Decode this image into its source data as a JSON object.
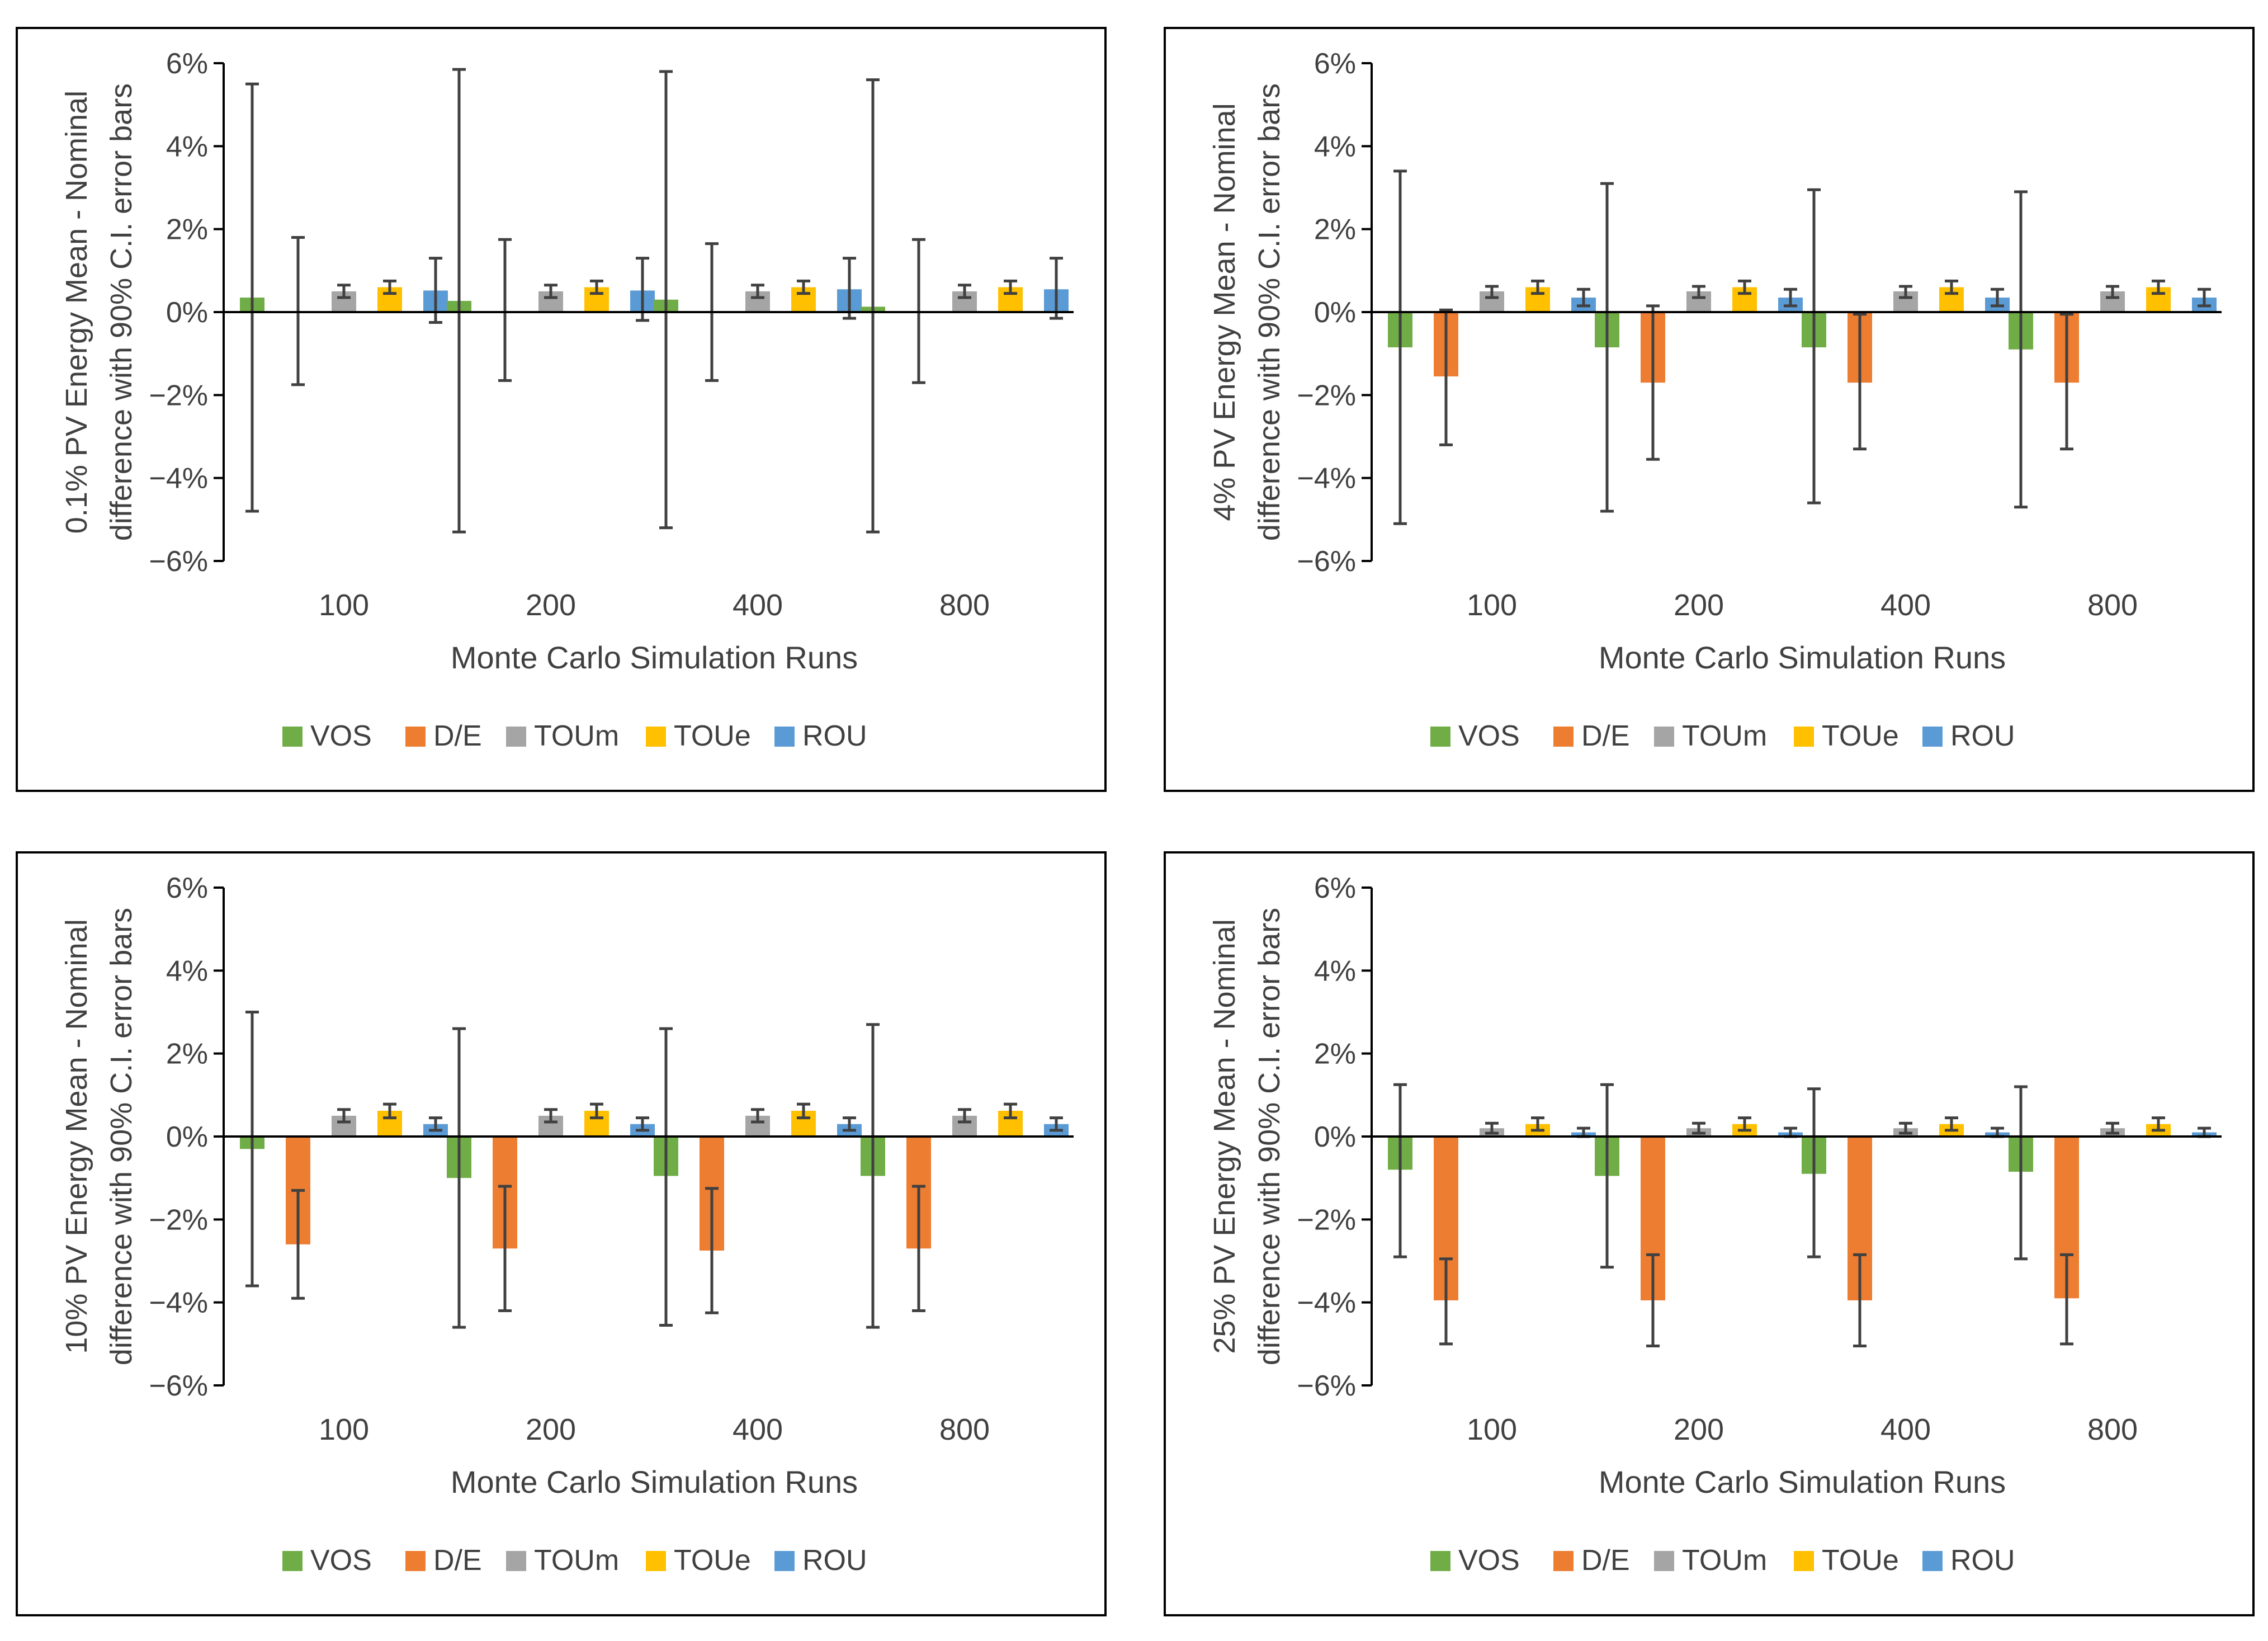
{
  "colors": {
    "VOS": "#70ad47",
    "D/E": "#ed7d31",
    "TOUm": "#a5a5a5",
    "TOUe": "#ffc000",
    "ROU": "#5b9bd5",
    "error_bar": "#404040",
    "frame": "#000000"
  },
  "chart_data": [
    {
      "type": "bar",
      "title": "",
      "ylabel_line1": "0.1% PV Energy  Mean - Nominal",
      "ylabel_line2": "difference with 90% C.I. error bars",
      "xlabel": "Monte Carlo Simulation Runs",
      "categories": [
        "100",
        "200",
        "400",
        "800"
      ],
      "ylim": [
        -6,
        6
      ],
      "yticks": [
        -6,
        -4,
        -2,
        0,
        2,
        4,
        6
      ],
      "ytick_labels": [
        "−6%",
        "−4%",
        "−2%",
        "0%",
        "2%",
        "4%",
        "6%"
      ],
      "legend": [
        "VOS",
        "D/E",
        "TOUm",
        "TOUe",
        "ROU"
      ],
      "series": [
        {
          "name": "VOS",
          "values": [
            0.35,
            0.27,
            0.3,
            0.13
          ],
          "err_low": [
            -4.8,
            -5.3,
            -5.2,
            -5.3
          ],
          "err_high": [
            5.5,
            5.85,
            5.8,
            5.6
          ]
        },
        {
          "name": "D/E",
          "values": [
            0.0,
            0.0,
            0.0,
            0.0
          ],
          "err_low": [
            -1.75,
            -1.65,
            -1.65,
            -1.7
          ],
          "err_high": [
            1.8,
            1.75,
            1.65,
            1.75
          ]
        },
        {
          "name": "TOUm",
          "values": [
            0.5,
            0.5,
            0.5,
            0.5
          ],
          "err_low": [
            0.35,
            0.35,
            0.35,
            0.35
          ],
          "err_high": [
            0.65,
            0.65,
            0.65,
            0.65
          ]
        },
        {
          "name": "TOUe",
          "values": [
            0.6,
            0.6,
            0.6,
            0.6
          ],
          "err_low": [
            0.45,
            0.45,
            0.45,
            0.45
          ],
          "err_high": [
            0.75,
            0.75,
            0.75,
            0.75
          ]
        },
        {
          "name": "ROU",
          "values": [
            0.52,
            0.52,
            0.55,
            0.55
          ],
          "err_low": [
            -0.25,
            -0.2,
            -0.15,
            -0.15
          ],
          "err_high": [
            1.3,
            1.3,
            1.3,
            1.3
          ]
        }
      ]
    },
    {
      "type": "bar",
      "title": "",
      "ylabel_line1": "4% PV Energy  Mean - Nominal",
      "ylabel_line2": "difference with 90% C.I. error bars",
      "xlabel": "Monte Carlo Simulation Runs",
      "categories": [
        "100",
        "200",
        "400",
        "800"
      ],
      "ylim": [
        -6,
        6
      ],
      "yticks": [
        -6,
        -4,
        -2,
        0,
        2,
        4,
        6
      ],
      "ytick_labels": [
        "−6%",
        "−4%",
        "−2%",
        "0%",
        "2%",
        "4%",
        "6%"
      ],
      "legend": [
        "VOS",
        "D/E",
        "TOUm",
        "TOUe",
        "ROU"
      ],
      "series": [
        {
          "name": "VOS",
          "values": [
            -0.85,
            -0.85,
            -0.85,
            -0.9
          ],
          "err_low": [
            -5.1,
            -4.8,
            -4.6,
            -4.7
          ],
          "err_high": [
            3.4,
            3.1,
            2.95,
            2.9
          ]
        },
        {
          "name": "D/E",
          "values": [
            -1.55,
            -1.7,
            -1.7,
            -1.7
          ],
          "err_low": [
            -3.2,
            -3.55,
            -3.3,
            -3.3
          ],
          "err_high": [
            0.05,
            0.15,
            -0.05,
            -0.05
          ]
        },
        {
          "name": "TOUm",
          "values": [
            0.5,
            0.5,
            0.5,
            0.5
          ],
          "err_low": [
            0.35,
            0.35,
            0.35,
            0.35
          ],
          "err_high": [
            0.62,
            0.62,
            0.62,
            0.62
          ]
        },
        {
          "name": "TOUe",
          "values": [
            0.6,
            0.6,
            0.6,
            0.6
          ],
          "err_low": [
            0.45,
            0.45,
            0.45,
            0.45
          ],
          "err_high": [
            0.75,
            0.75,
            0.75,
            0.75
          ]
        },
        {
          "name": "ROU",
          "values": [
            0.35,
            0.35,
            0.35,
            0.35
          ],
          "err_low": [
            0.15,
            0.15,
            0.15,
            0.15
          ],
          "err_high": [
            0.55,
            0.55,
            0.55,
            0.55
          ]
        }
      ]
    },
    {
      "type": "bar",
      "title": "",
      "ylabel_line1": "10% PV Energy  Mean - Nominal",
      "ylabel_line2": "difference with 90% C.I. error bars",
      "xlabel": "Monte Carlo Simulation Runs",
      "categories": [
        "100",
        "200",
        "400",
        "800"
      ],
      "ylim": [
        -6,
        6
      ],
      "yticks": [
        -6,
        -4,
        -2,
        0,
        2,
        4,
        6
      ],
      "ytick_labels": [
        "−6%",
        "−4%",
        "−2%",
        "0%",
        "2%",
        "4%",
        "6%"
      ],
      "legend": [
        "VOS",
        "D/E",
        "TOUm",
        "TOUe",
        "ROU"
      ],
      "series": [
        {
          "name": "VOS",
          "values": [
            -0.3,
            -1.0,
            -0.95,
            -0.95
          ],
          "err_low": [
            -3.6,
            -4.6,
            -4.55,
            -4.6
          ],
          "err_high": [
            3.0,
            2.6,
            2.6,
            2.7
          ]
        },
        {
          "name": "D/E",
          "values": [
            -2.6,
            -2.7,
            -2.75,
            -2.7
          ],
          "err_low": [
            -3.9,
            -4.2,
            -4.25,
            -4.2
          ],
          "err_high": [
            -1.3,
            -1.2,
            -1.25,
            -1.2
          ]
        },
        {
          "name": "TOUm",
          "values": [
            0.5,
            0.5,
            0.5,
            0.5
          ],
          "err_low": [
            0.35,
            0.35,
            0.35,
            0.35
          ],
          "err_high": [
            0.65,
            0.65,
            0.65,
            0.65
          ]
        },
        {
          "name": "TOUe",
          "values": [
            0.62,
            0.62,
            0.62,
            0.62
          ],
          "err_low": [
            0.45,
            0.45,
            0.45,
            0.45
          ],
          "err_high": [
            0.78,
            0.78,
            0.78,
            0.78
          ]
        },
        {
          "name": "ROU",
          "values": [
            0.3,
            0.3,
            0.3,
            0.3
          ],
          "err_low": [
            0.15,
            0.15,
            0.15,
            0.15
          ],
          "err_high": [
            0.45,
            0.45,
            0.45,
            0.45
          ]
        }
      ]
    },
    {
      "type": "bar",
      "title": "",
      "ylabel_line1": "25% PV Energy  Mean - Nominal",
      "ylabel_line2": "difference with 90% C.I. error bars",
      "xlabel": "Monte Carlo Simulation Runs",
      "categories": [
        "100",
        "200",
        "400",
        "800"
      ],
      "ylim": [
        -6,
        6
      ],
      "yticks": [
        -6,
        -4,
        -2,
        0,
        2,
        4,
        6
      ],
      "ytick_labels": [
        "−6%",
        "−4%",
        "−2%",
        "0%",
        "2%",
        "4%",
        "6%"
      ],
      "legend": [
        "VOS",
        "D/E",
        "TOUm",
        "TOUe",
        "ROU"
      ],
      "series": [
        {
          "name": "VOS",
          "values": [
            -0.8,
            -0.95,
            -0.9,
            -0.85
          ],
          "err_low": [
            -2.9,
            -3.15,
            -2.9,
            -2.95
          ],
          "err_high": [
            1.25,
            1.25,
            1.15,
            1.2
          ]
        },
        {
          "name": "D/E",
          "values": [
            -3.95,
            -3.95,
            -3.95,
            -3.9
          ],
          "err_low": [
            -5.0,
            -5.05,
            -5.05,
            -5.0
          ],
          "err_high": [
            -2.95,
            -2.85,
            -2.85,
            -2.85
          ]
        },
        {
          "name": "TOUm",
          "values": [
            0.2,
            0.2,
            0.2,
            0.2
          ],
          "err_low": [
            0.08,
            0.08,
            0.08,
            0.08
          ],
          "err_high": [
            0.32,
            0.32,
            0.32,
            0.32
          ]
        },
        {
          "name": "TOUe",
          "values": [
            0.3,
            0.3,
            0.3,
            0.3
          ],
          "err_low": [
            0.15,
            0.15,
            0.15,
            0.15
          ],
          "err_high": [
            0.45,
            0.45,
            0.45,
            0.45
          ]
        },
        {
          "name": "ROU",
          "values": [
            0.1,
            0.1,
            0.1,
            0.1
          ],
          "err_low": [
            0.0,
            0.0,
            0.0,
            0.0
          ],
          "err_high": [
            0.2,
            0.2,
            0.2,
            0.2
          ]
        }
      ]
    }
  ]
}
